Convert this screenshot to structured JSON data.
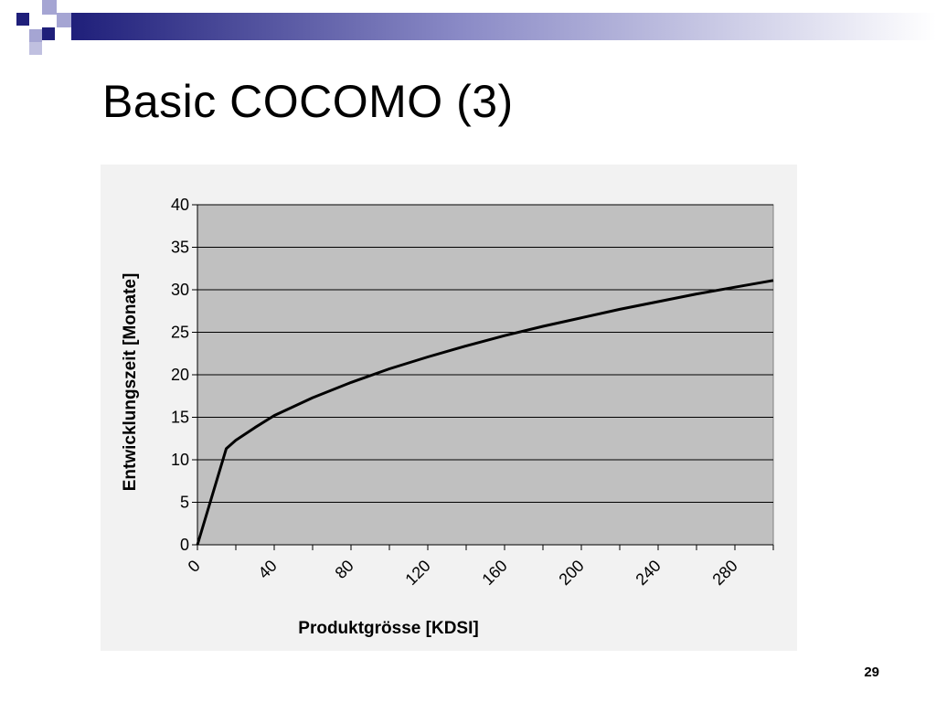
{
  "slide": {
    "title": "Basic COCOMO (3)",
    "page_number": "29"
  },
  "colors": {
    "banner_dark": "#1f1f7a",
    "banner_light": "#a5a5d3",
    "chart_background": "#f2f2f2",
    "plot_area": "#c0c0c0",
    "gridline": "#000000",
    "line": "#000000"
  },
  "chart_data": {
    "type": "line",
    "title": "",
    "xlabel": "Produktgrösse [KDSI]",
    "ylabel": "Entwicklungszeit [Monate]",
    "xlim": [
      0,
      300
    ],
    "ylim": [
      0,
      40
    ],
    "x_tick_labels": [
      "0",
      "40",
      "80",
      "120",
      "160",
      "200",
      "240",
      "280"
    ],
    "y_tick_labels": [
      "0",
      "5",
      "10",
      "15",
      "20",
      "25",
      "30",
      "35",
      "40"
    ],
    "grid": "horizontal",
    "legend": "none",
    "series": [
      {
        "x": [
          0,
          15,
          20,
          30,
          40,
          60,
          80,
          100,
          120,
          140,
          160,
          180,
          200,
          220,
          240,
          260,
          280,
          300
        ],
        "y": [
          0,
          11.3,
          12.3,
          13.8,
          15.2,
          17.3,
          19.1,
          20.7,
          22.1,
          23.4,
          24.6,
          25.7,
          26.7,
          27.7,
          28.6,
          29.5,
          30.3,
          31.1
        ]
      }
    ]
  }
}
